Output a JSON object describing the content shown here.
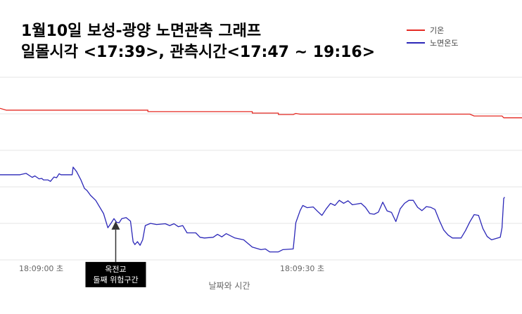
{
  "chart_data": {
    "type": "line",
    "title_lines": [
      "1월10일 보성-광양 노면관측 그래프",
      "일몰시각 <17:39>, 관측시간<17:47 ~ 19:16>"
    ],
    "xlabel": "날짜와 시간",
    "ylabel": "",
    "x_ticks": [
      "18:09:00 초",
      "18:09:30 초"
    ],
    "grid": true,
    "legend_position": "top-right",
    "x_unit": "seconds after 18:09:00",
    "xlim": [
      -1.5,
      58.5
    ],
    "ylim": [
      0,
      5
    ],
    "series": [
      {
        "name": "기온",
        "color": "#e52b24",
        "points": [
          [
            -1.5,
            4.15
          ],
          [
            -0.8,
            4.1
          ],
          [
            0,
            4.1
          ],
          [
            15.5,
            4.1
          ],
          [
            15.5,
            4.06
          ],
          [
            27.5,
            4.06
          ],
          [
            27.5,
            4.02
          ],
          [
            30.5,
            4.02
          ],
          [
            30.5,
            3.98
          ],
          [
            32.2,
            3.98
          ],
          [
            32.5,
            4.01
          ],
          [
            33.0,
            3.99
          ],
          [
            52.5,
            3.99
          ],
          [
            53.0,
            3.94
          ],
          [
            56.2,
            3.94
          ],
          [
            56.4,
            3.89
          ],
          [
            58.5,
            3.89
          ]
        ]
      },
      {
        "name": "노면온도",
        "color": "#2b27b8",
        "points": [
          [
            -1.5,
            2.33
          ],
          [
            0,
            2.33
          ],
          [
            0.8,
            2.33
          ],
          [
            1.5,
            2.37
          ],
          [
            2.2,
            2.26
          ],
          [
            2.5,
            2.3
          ],
          [
            3.0,
            2.22
          ],
          [
            3.3,
            2.23
          ],
          [
            3.5,
            2.19
          ],
          [
            4.0,
            2.19
          ],
          [
            4.3,
            2.15
          ],
          [
            4.7,
            2.27
          ],
          [
            5.0,
            2.25
          ],
          [
            5.3,
            2.36
          ],
          [
            5.5,
            2.33
          ],
          [
            6.8,
            2.33
          ],
          [
            6.9,
            2.54
          ],
          [
            7.3,
            2.42
          ],
          [
            7.8,
            2.19
          ],
          [
            8.2,
            1.96
          ],
          [
            8.5,
            1.9
          ],
          [
            8.9,
            1.77
          ],
          [
            9.5,
            1.63
          ],
          [
            10.4,
            1.27
          ],
          [
            10.9,
            0.88
          ],
          [
            11.3,
            1.02
          ],
          [
            11.6,
            1.13
          ],
          [
            11.9,
            1.03
          ],
          [
            12.2,
            1.02
          ],
          [
            12.5,
            1.13
          ],
          [
            13.0,
            1.16
          ],
          [
            13.5,
            1.06
          ],
          [
            13.8,
            0.5
          ],
          [
            14.0,
            0.42
          ],
          [
            14.3,
            0.5
          ],
          [
            14.6,
            0.4
          ],
          [
            14.9,
            0.55
          ],
          [
            15.2,
            0.94
          ],
          [
            15.8,
            1.0
          ],
          [
            16.5,
            0.97
          ],
          [
            17.5,
            0.99
          ],
          [
            18.0,
            0.94
          ],
          [
            18.5,
            0.99
          ],
          [
            19.0,
            0.91
          ],
          [
            19.5,
            0.94
          ],
          [
            20.0,
            0.74
          ],
          [
            21.0,
            0.74
          ],
          [
            21.5,
            0.62
          ],
          [
            22.0,
            0.6
          ],
          [
            23.0,
            0.62
          ],
          [
            23.5,
            0.7
          ],
          [
            24.0,
            0.63
          ],
          [
            24.5,
            0.72
          ],
          [
            25.0,
            0.66
          ],
          [
            25.5,
            0.6
          ],
          [
            26.5,
            0.55
          ],
          [
            27.5,
            0.35
          ],
          [
            28.5,
            0.28
          ],
          [
            29.0,
            0.3
          ],
          [
            29.5,
            0.22
          ],
          [
            30.5,
            0.22
          ],
          [
            31.0,
            0.28
          ],
          [
            32.2,
            0.3
          ],
          [
            32.5,
            1.02
          ],
          [
            33.0,
            1.35
          ],
          [
            33.3,
            1.49
          ],
          [
            33.8,
            1.43
          ],
          [
            34.5,
            1.45
          ],
          [
            35.0,
            1.33
          ],
          [
            35.5,
            1.22
          ],
          [
            36.0,
            1.4
          ],
          [
            36.5,
            1.55
          ],
          [
            37.0,
            1.49
          ],
          [
            37.5,
            1.63
          ],
          [
            38.0,
            1.55
          ],
          [
            38.5,
            1.62
          ],
          [
            39.0,
            1.51
          ],
          [
            40.0,
            1.55
          ],
          [
            40.5,
            1.44
          ],
          [
            41.0,
            1.27
          ],
          [
            41.5,
            1.25
          ],
          [
            42.0,
            1.31
          ],
          [
            42.5,
            1.58
          ],
          [
            43.0,
            1.34
          ],
          [
            43.5,
            1.3
          ],
          [
            44.0,
            1.05
          ],
          [
            44.5,
            1.4
          ],
          [
            45.0,
            1.55
          ],
          [
            45.5,
            1.63
          ],
          [
            46.0,
            1.63
          ],
          [
            46.5,
            1.44
          ],
          [
            47.0,
            1.35
          ],
          [
            47.5,
            1.46
          ],
          [
            48.0,
            1.44
          ],
          [
            48.5,
            1.38
          ],
          [
            49.0,
            1.08
          ],
          [
            49.5,
            0.82
          ],
          [
            50.0,
            0.68
          ],
          [
            50.5,
            0.6
          ],
          [
            51.5,
            0.6
          ],
          [
            52.0,
            0.8
          ],
          [
            52.5,
            1.04
          ],
          [
            53.0,
            1.24
          ],
          [
            53.5,
            1.22
          ],
          [
            54.0,
            0.86
          ],
          [
            54.5,
            0.64
          ],
          [
            55.0,
            0.55
          ],
          [
            56.0,
            0.62
          ],
          [
            56.2,
            0.88
          ],
          [
            56.4,
            1.68
          ],
          [
            56.5,
            1.72
          ]
        ]
      }
    ],
    "annotations": [
      {
        "text_lines": [
          "옥전교",
          "둘째 위험구간"
        ],
        "x": 11.8,
        "y": 1.06
      }
    ]
  }
}
